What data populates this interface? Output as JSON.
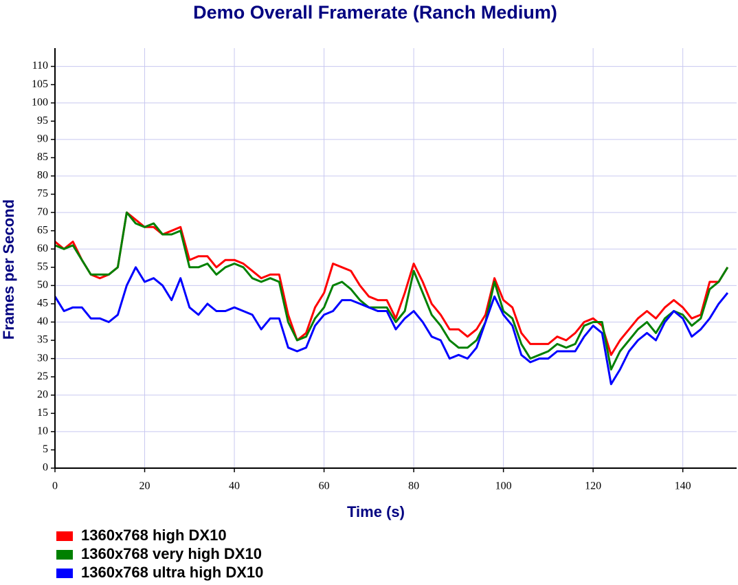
{
  "chart_data": {
    "type": "line",
    "title": "Demo Overall Framerate (Ranch Medium)",
    "x_label": "Time (s)",
    "y_label": "Frames per Second",
    "x": [
      0,
      2,
      4,
      6,
      8,
      10,
      12,
      14,
      16,
      18,
      20,
      22,
      24,
      26,
      28,
      30,
      32,
      34,
      36,
      38,
      40,
      42,
      44,
      46,
      48,
      50,
      52,
      54,
      56,
      58,
      60,
      62,
      64,
      66,
      68,
      70,
      72,
      74,
      76,
      78,
      80,
      82,
      84,
      86,
      88,
      90,
      92,
      94,
      96,
      98,
      100,
      102,
      104,
      106,
      108,
      110,
      112,
      114,
      116,
      118,
      120,
      122,
      124,
      126,
      128,
      130,
      132,
      134,
      136,
      138,
      140,
      142,
      144,
      146,
      148,
      150
    ],
    "series": [
      {
        "name": "1360x768 high DX10",
        "color": "#ff0000",
        "values": [
          62,
          60,
          62,
          57,
          53,
          52,
          53,
          55,
          70,
          68,
          66,
          66,
          64,
          65,
          66,
          57,
          58,
          58,
          55,
          57,
          57,
          56,
          54,
          52,
          53,
          53,
          42,
          35,
          37,
          44,
          48,
          56,
          55,
          54,
          50,
          47,
          46,
          46,
          41,
          48,
          56,
          51,
          45,
          42,
          38,
          38,
          36,
          38,
          42,
          52,
          46,
          44,
          37,
          34,
          34,
          34,
          36,
          35,
          37,
          40,
          41,
          39,
          31,
          35,
          38,
          41,
          43,
          41,
          44,
          46,
          44,
          41,
          42,
          51,
          51,
          55
        ]
      },
      {
        "name": "1360x768 very high DX10",
        "color": "#008000",
        "values": [
          61,
          60,
          61,
          57,
          53,
          53,
          53,
          55,
          70,
          67,
          66,
          67,
          64,
          64,
          65,
          55,
          55,
          56,
          53,
          55,
          56,
          55,
          52,
          51,
          52,
          51,
          40,
          35,
          36,
          41,
          44,
          50,
          51,
          49,
          46,
          44,
          44,
          44,
          40,
          43,
          54,
          48,
          42,
          39,
          35,
          33,
          33,
          35,
          40,
          51,
          43,
          41,
          34,
          30,
          31,
          32,
          34,
          33,
          34,
          39,
          40,
          40,
          27,
          32,
          35,
          38,
          40,
          37,
          41,
          43,
          42,
          39,
          41,
          49,
          51,
          55
        ]
      },
      {
        "name": "1360x768 ultra high DX10",
        "color": "#0000ff",
        "values": [
          47,
          43,
          44,
          44,
          41,
          41,
          40,
          42,
          50,
          55,
          51,
          52,
          50,
          46,
          52,
          44,
          42,
          45,
          43,
          43,
          44,
          43,
          42,
          38,
          41,
          41,
          33,
          32,
          33,
          39,
          42,
          43,
          46,
          46,
          45,
          44,
          43,
          43,
          38,
          41,
          43,
          40,
          36,
          35,
          30,
          31,
          30,
          33,
          40,
          47,
          42,
          39,
          31,
          29,
          30,
          30,
          32,
          32,
          32,
          36,
          39,
          37,
          23,
          27,
          32,
          35,
          37,
          35,
          40,
          43,
          41,
          36,
          38,
          41,
          45,
          48
        ]
      }
    ],
    "xlim": [
      0,
      152
    ],
    "ylim": [
      0,
      115
    ],
    "xticks": [
      0,
      20,
      40,
      60,
      80,
      100,
      120,
      140
    ],
    "yticks": [
      0,
      5,
      10,
      15,
      20,
      25,
      30,
      35,
      40,
      45,
      50,
      55,
      60,
      65,
      70,
      75,
      80,
      85,
      90,
      95,
      100,
      105,
      110
    ],
    "grid": true,
    "legend": "bottom-left"
  }
}
